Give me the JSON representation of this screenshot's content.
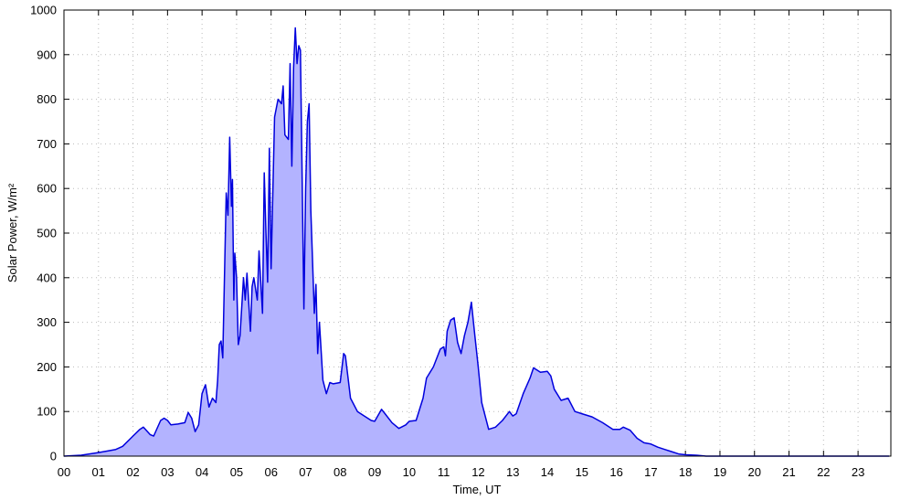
{
  "chart_data": {
    "type": "area",
    "x_label": "Time, UT",
    "y_label": "Solar Power, W/m²",
    "xlim": [
      0,
      23.95
    ],
    "ylim": [
      0,
      1000
    ],
    "xticks": [
      {
        "value": 0,
        "label": "00"
      },
      {
        "value": 1,
        "label": "01"
      },
      {
        "value": 2,
        "label": "02"
      },
      {
        "value": 3,
        "label": "03"
      },
      {
        "value": 4,
        "label": "04"
      },
      {
        "value": 5,
        "label": "05"
      },
      {
        "value": 6,
        "label": "06"
      },
      {
        "value": 7,
        "label": "07"
      },
      {
        "value": 8,
        "label": "08"
      },
      {
        "value": 9,
        "label": "09"
      },
      {
        "value": 10,
        "label": "10"
      },
      {
        "value": 11,
        "label": "11"
      },
      {
        "value": 12,
        "label": "12"
      },
      {
        "value": 13,
        "label": "13"
      },
      {
        "value": 14,
        "label": "14"
      },
      {
        "value": 15,
        "label": "15"
      },
      {
        "value": 16,
        "label": "16"
      },
      {
        "value": 17,
        "label": "17"
      },
      {
        "value": 18,
        "label": "18"
      },
      {
        "value": 19,
        "label": "19"
      },
      {
        "value": 20,
        "label": "20"
      },
      {
        "value": 21,
        "label": "21"
      },
      {
        "value": 22,
        "label": "22"
      },
      {
        "value": 23,
        "label": "23"
      }
    ],
    "yticks": [
      0,
      100,
      200,
      300,
      400,
      500,
      600,
      700,
      800,
      900,
      1000
    ],
    "grid": true,
    "line_color": "#0000dd",
    "fill_color": "#b3b3ff",
    "x": [
      0,
      0.5,
      1.0,
      1.3,
      1.5,
      1.7,
      2.0,
      2.2,
      2.3,
      2.5,
      2.6,
      2.8,
      2.9,
      3.0,
      3.1,
      3.3,
      3.5,
      3.6,
      3.7,
      3.8,
      3.9,
      4.0,
      4.1,
      4.2,
      4.3,
      4.4,
      4.45,
      4.5,
      4.55,
      4.6,
      4.7,
      4.75,
      4.8,
      4.85,
      4.88,
      4.92,
      4.95,
      5.0,
      5.05,
      5.1,
      5.2,
      5.25,
      5.3,
      5.4,
      5.45,
      5.5,
      5.6,
      5.65,
      5.75,
      5.8,
      5.85,
      5.9,
      5.95,
      6.0,
      6.1,
      6.2,
      6.3,
      6.35,
      6.4,
      6.5,
      6.55,
      6.6,
      6.65,
      6.7,
      6.75,
      6.8,
      6.85,
      6.95,
      7.0,
      7.05,
      7.1,
      7.15,
      7.25,
      7.3,
      7.35,
      7.4,
      7.5,
      7.6,
      7.7,
      7.8,
      8.0,
      8.1,
      8.15,
      8.3,
      8.5,
      8.7,
      8.9,
      9.0,
      9.2,
      9.3,
      9.5,
      9.7,
      9.9,
      10.0,
      10.2,
      10.4,
      10.5,
      10.7,
      10.9,
      11.0,
      11.05,
      11.1,
      11.2,
      11.3,
      11.4,
      11.5,
      11.6,
      11.7,
      11.8,
      11.9,
      12.0,
      12.1,
      12.3,
      12.5,
      12.7,
      12.9,
      13.0,
      13.1,
      13.3,
      13.5,
      13.6,
      13.8,
      14.0,
      14.1,
      14.2,
      14.4,
      14.6,
      14.8,
      15.0,
      15.3,
      15.6,
      15.9,
      16.1,
      16.2,
      16.4,
      16.6,
      16.8,
      17.0,
      17.2,
      17.4,
      17.6,
      17.8,
      18.0,
      18.3,
      18.6,
      20,
      22,
      23.9
    ],
    "values": [
      0,
      2,
      8,
      12,
      15,
      22,
      45,
      60,
      65,
      48,
      45,
      80,
      85,
      80,
      70,
      72,
      75,
      98,
      85,
      55,
      70,
      140,
      160,
      110,
      130,
      120,
      170,
      250,
      258,
      220,
      590,
      540,
      715,
      560,
      620,
      350,
      455,
      400,
      250,
      270,
      400,
      350,
      410,
      280,
      380,
      400,
      350,
      460,
      320,
      635,
      500,
      390,
      690,
      420,
      760,
      800,
      790,
      830,
      720,
      710,
      880,
      650,
      870,
      960,
      880,
      920,
      910,
      330,
      600,
      750,
      790,
      550,
      320,
      385,
      230,
      300,
      170,
      140,
      165,
      162,
      165,
      230,
      225,
      130,
      100,
      90,
      80,
      78,
      105,
      95,
      75,
      62,
      70,
      78,
      80,
      130,
      175,
      200,
      240,
      245,
      225,
      280,
      305,
      310,
      255,
      230,
      270,
      300,
      345,
      270,
      200,
      120,
      60,
      65,
      80,
      100,
      90,
      95,
      140,
      175,
      198,
      188,
      190,
      180,
      150,
      125,
      130,
      100,
      95,
      88,
      75,
      60,
      60,
      65,
      58,
      40,
      30,
      27,
      20,
      15,
      10,
      5,
      3,
      2,
      0,
      0,
      0,
      0
    ]
  }
}
